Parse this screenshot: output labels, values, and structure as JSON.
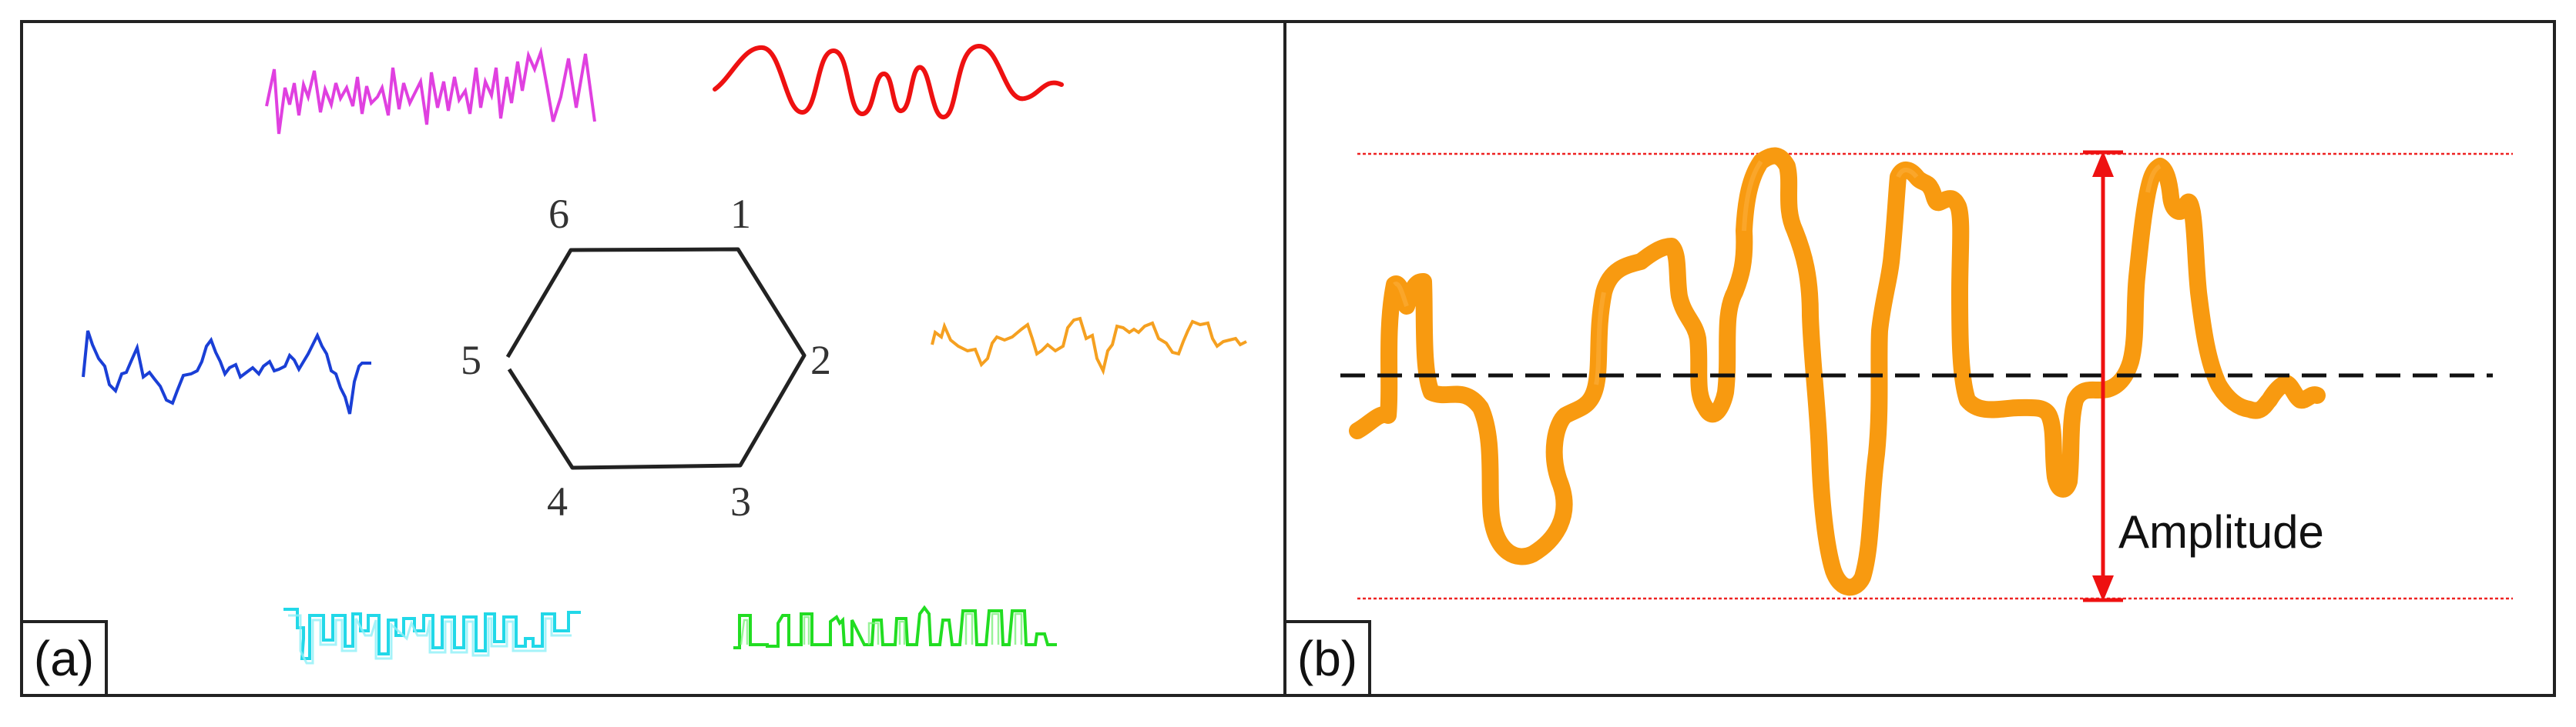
{
  "panel_a": {
    "label": "(a)",
    "vertices": [
      "1",
      "2",
      "3",
      "4",
      "5",
      "6"
    ],
    "waveforms": [
      {
        "name": "jagged-noise",
        "color": "#e040e0"
      },
      {
        "name": "smooth-sine",
        "color": "#ee1111"
      },
      {
        "name": "spiky-irregular",
        "color": "#1a3fd6"
      },
      {
        "name": "stepped-irregular",
        "color": "#f5a020"
      },
      {
        "name": "square-wave",
        "color": "#22d8e8"
      },
      {
        "name": "rectangular-pulse",
        "color": "#22dd22"
      }
    ]
  },
  "panel_b": {
    "label": "(b)",
    "amplitude_label": "Amplitude",
    "curve_color": "#f89a10",
    "arrow_color": "#ee1111",
    "envelope_color": "#ee2222",
    "midline_color": "#111111"
  }
}
